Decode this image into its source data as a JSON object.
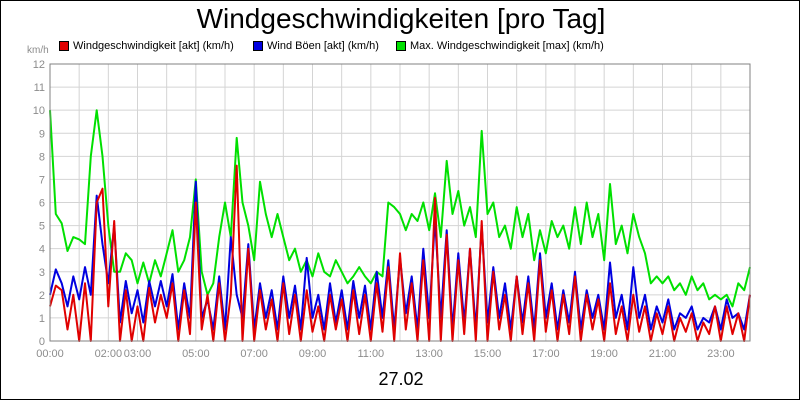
{
  "chart_data": {
    "type": "line",
    "title": "Windgeschwindigkeiten [pro Tag]",
    "ylabel": "km/h",
    "xlabel": "27.02",
    "ylim": [
      0,
      12
    ],
    "xlim_hours": [
      0,
      24
    ],
    "y_ticks": [
      "0",
      "1",
      "2",
      "3",
      "4",
      "5",
      "6",
      "7",
      "8",
      "9",
      "10",
      "11",
      "12"
    ],
    "x_ticks": [
      {
        "hour": 0,
        "label": "00:00"
      },
      {
        "hour": 2,
        "label": "02:00"
      },
      {
        "hour": 3,
        "label": "03:00"
      },
      {
        "hour": 5,
        "label": "05:00"
      },
      {
        "hour": 7,
        "label": "07:00"
      },
      {
        "hour": 9,
        "label": "09:00"
      },
      {
        "hour": 11,
        "label": "11:00"
      },
      {
        "hour": 13,
        "label": "13:00"
      },
      {
        "hour": 15,
        "label": "15:00"
      },
      {
        "hour": 17,
        "label": "17:00"
      },
      {
        "hour": 19,
        "label": "19:00"
      },
      {
        "hour": 21,
        "label": "21:00"
      },
      {
        "hour": 23,
        "label": "23:00"
      }
    ],
    "grid": true,
    "legend_position": "top",
    "series": [
      {
        "name": "Windgeschwindigkeit [akt] (km/h)",
        "color": "#e00000",
        "x": [
          0,
          0.2,
          0.4,
          0.6,
          0.8,
          1.0,
          1.2,
          1.4,
          1.6,
          1.8,
          2.0,
          2.2,
          2.4,
          2.6,
          2.8,
          3.0,
          3.2,
          3.4,
          3.6,
          3.8,
          4.0,
          4.2,
          4.4,
          4.6,
          4.8,
          5.0,
          5.2,
          5.4,
          5.6,
          5.8,
          6.0,
          6.2,
          6.4,
          6.6,
          6.8,
          7.0,
          7.2,
          7.4,
          7.6,
          7.8,
          8.0,
          8.2,
          8.4,
          8.6,
          8.8,
          9.0,
          9.2,
          9.4,
          9.6,
          9.8,
          10.0,
          10.2,
          10.4,
          10.6,
          10.8,
          11.0,
          11.2,
          11.4,
          11.6,
          11.8,
          12.0,
          12.2,
          12.4,
          12.6,
          12.8,
          13.0,
          13.2,
          13.4,
          13.6,
          13.8,
          14.0,
          14.2,
          14.4,
          14.6,
          14.8,
          15.0,
          15.2,
          15.4,
          15.6,
          15.8,
          16.0,
          16.2,
          16.4,
          16.6,
          16.8,
          17.0,
          17.2,
          17.4,
          17.6,
          17.8,
          18.0,
          18.2,
          18.4,
          18.6,
          18.8,
          19.0,
          19.2,
          19.4,
          19.6,
          19.8,
          20.0,
          20.2,
          20.4,
          20.6,
          20.8,
          21.0,
          21.2,
          21.4,
          21.6,
          21.8,
          22.0,
          22.2,
          22.4,
          22.6,
          22.8,
          23.0,
          23.2,
          23.4,
          23.6,
          23.8,
          24.0
        ],
        "values": [
          1.5,
          2.4,
          2.2,
          0.5,
          2.0,
          0,
          2.5,
          0,
          6.0,
          6.6,
          1.5,
          5.2,
          0,
          2.2,
          0,
          1.5,
          0,
          2.3,
          0.8,
          2.0,
          1.0,
          2.5,
          0,
          2.2,
          0.3,
          6.0,
          0.5,
          2.0,
          0,
          2.5,
          0,
          2.0,
          7.6,
          0,
          4.0,
          0,
          2.2,
          0.5,
          1.8,
          0,
          2.5,
          0.3,
          2.0,
          0,
          2.2,
          0.4,
          1.5,
          0,
          2.0,
          0.5,
          1.8,
          0,
          2.2,
          0.3,
          2.0,
          0,
          2.5,
          0.4,
          3.2,
          0,
          3.8,
          0.5,
          2.5,
          0,
          3.5,
          0,
          6.2,
          0,
          4.6,
          0,
          3.5,
          0.3,
          4.0,
          0,
          5.2,
          0,
          3.0,
          0.5,
          2.0,
          0,
          2.8,
          0.3,
          2.5,
          0,
          3.5,
          0.4,
          2.2,
          0,
          2.0,
          0.3,
          2.8,
          0,
          2.0,
          0.5,
          1.8,
          0,
          2.5,
          0.3,
          1.5,
          0,
          2.0,
          0.4,
          1.5,
          0,
          1.2,
          0.3,
          1.5,
          0,
          1.0,
          0.4,
          1.2,
          0,
          0.8,
          0.3,
          1.5,
          0,
          1.5,
          0.3,
          1.2,
          0,
          2.0
        ]
      },
      {
        "name": "Wind Böen [akt] (km/h)",
        "color": "#0000e0",
        "x": [
          0,
          0.2,
          0.4,
          0.6,
          0.8,
          1.0,
          1.2,
          1.4,
          1.6,
          1.8,
          2.0,
          2.2,
          2.4,
          2.6,
          2.8,
          3.0,
          3.2,
          3.4,
          3.6,
          3.8,
          4.0,
          4.2,
          4.4,
          4.6,
          4.8,
          5.0,
          5.2,
          5.4,
          5.6,
          5.8,
          6.0,
          6.2,
          6.4,
          6.6,
          6.8,
          7.0,
          7.2,
          7.4,
          7.6,
          7.8,
          8.0,
          8.2,
          8.4,
          8.6,
          8.8,
          9.0,
          9.2,
          9.4,
          9.6,
          9.8,
          10.0,
          10.2,
          10.4,
          10.6,
          10.8,
          11.0,
          11.2,
          11.4,
          11.6,
          11.8,
          12.0,
          12.2,
          12.4,
          12.6,
          12.8,
          13.0,
          13.2,
          13.4,
          13.6,
          13.8,
          14.0,
          14.2,
          14.4,
          14.6,
          14.8,
          15.0,
          15.2,
          15.4,
          15.6,
          15.8,
          16.0,
          16.2,
          16.4,
          16.6,
          16.8,
          17.0,
          17.2,
          17.4,
          17.6,
          17.8,
          18.0,
          18.2,
          18.4,
          18.6,
          18.8,
          19.0,
          19.2,
          19.4,
          19.6,
          19.8,
          20.0,
          20.2,
          20.4,
          20.6,
          20.8,
          21.0,
          21.2,
          21.4,
          21.6,
          21.8,
          22.0,
          22.2,
          22.4,
          22.6,
          22.8,
          23.0,
          23.2,
          23.4,
          23.6,
          23.8,
          24.0
        ],
        "values": [
          2.0,
          3.1,
          2.5,
          1.5,
          2.8,
          1.8,
          3.2,
          2.0,
          6.3,
          4.2,
          2.5,
          5.0,
          0.8,
          2.6,
          1.2,
          2.2,
          0.8,
          2.6,
          1.5,
          2.6,
          1.5,
          2.9,
          0.5,
          2.5,
          1.0,
          6.9,
          1.0,
          1.8,
          0.5,
          2.8,
          0.5,
          4.5,
          2.0,
          1.0,
          4.2,
          0.5,
          2.5,
          1.0,
          2.2,
          0.5,
          2.8,
          1.0,
          2.4,
          0.5,
          3.6,
          1.0,
          2.0,
          0.5,
          2.5,
          0.8,
          2.2,
          0.5,
          2.6,
          1.0,
          2.4,
          0.5,
          3.0,
          1.0,
          3.5,
          0.5,
          3.6,
          1.2,
          2.8,
          0.5,
          4.0,
          1.0,
          5.3,
          1.0,
          4.8,
          0.5,
          3.8,
          0.8,
          4.0,
          0.5,
          5.0,
          0.8,
          3.2,
          1.0,
          2.5,
          0.5,
          2.8,
          0.8,
          2.8,
          0.5,
          3.8,
          1.0,
          2.5,
          0.5,
          2.2,
          0.8,
          3.0,
          0.5,
          2.2,
          1.0,
          2.0,
          0.5,
          3.4,
          1.0,
          2.0,
          0.5,
          3.2,
          1.0,
          2.0,
          0.5,
          1.5,
          0.8,
          1.8,
          0.5,
          1.2,
          1.0,
          1.5,
          0.5,
          1.0,
          0.8,
          1.5,
          0.5,
          1.8,
          1.0,
          1.2,
          0.5,
          2.0
        ]
      },
      {
        "name": "Max. Windgeschwindigkeit [max] (km/h)",
        "color": "#00e000",
        "x": [
          0,
          0.2,
          0.4,
          0.6,
          0.8,
          1.0,
          1.2,
          1.4,
          1.6,
          1.8,
          2.0,
          2.2,
          2.4,
          2.6,
          2.8,
          3.0,
          3.2,
          3.4,
          3.6,
          3.8,
          4.0,
          4.2,
          4.4,
          4.6,
          4.8,
          5.0,
          5.2,
          5.4,
          5.6,
          5.8,
          6.0,
          6.2,
          6.4,
          6.6,
          6.8,
          7.0,
          7.2,
          7.4,
          7.6,
          7.8,
          8.0,
          8.2,
          8.4,
          8.6,
          8.8,
          9.0,
          9.2,
          9.4,
          9.6,
          9.8,
          10.0,
          10.2,
          10.4,
          10.6,
          10.8,
          11.0,
          11.2,
          11.4,
          11.6,
          11.8,
          12.0,
          12.2,
          12.4,
          12.6,
          12.8,
          13.0,
          13.2,
          13.4,
          13.6,
          13.8,
          14.0,
          14.2,
          14.4,
          14.6,
          14.8,
          15.0,
          15.2,
          15.4,
          15.6,
          15.8,
          16.0,
          16.2,
          16.4,
          16.6,
          16.8,
          17.0,
          17.2,
          17.4,
          17.6,
          17.8,
          18.0,
          18.2,
          18.4,
          18.6,
          18.8,
          19.0,
          19.2,
          19.4,
          19.6,
          19.8,
          20.0,
          20.2,
          20.4,
          20.6,
          20.8,
          21.0,
          21.2,
          21.4,
          21.6,
          21.8,
          22.0,
          22.2,
          22.4,
          22.6,
          22.8,
          23.0,
          23.2,
          23.4,
          23.6,
          23.8,
          24.0
        ],
        "values": [
          10.0,
          5.5,
          5.1,
          3.9,
          4.5,
          4.4,
          4.2,
          8.0,
          10.0,
          8.0,
          5.0,
          3.0,
          3.0,
          3.8,
          3.5,
          2.5,
          3.4,
          2.5,
          3.5,
          2.8,
          3.8,
          4.8,
          3.0,
          3.5,
          4.5,
          7.0,
          3.0,
          2.0,
          2.5,
          4.5,
          6.0,
          4.5,
          8.8,
          6.0,
          5.0,
          3.5,
          6.9,
          5.5,
          4.5,
          5.5,
          4.5,
          3.5,
          4.0,
          3.0,
          3.5,
          2.8,
          3.8,
          3.0,
          2.8,
          3.5,
          3.0,
          2.5,
          2.8,
          3.2,
          2.8,
          2.5,
          3.0,
          2.8,
          6.0,
          5.8,
          5.5,
          4.8,
          5.5,
          5.2,
          6.0,
          4.8,
          6.4,
          4.5,
          7.8,
          5.5,
          6.5,
          5.0,
          5.8,
          4.5,
          9.1,
          5.5,
          6.0,
          4.5,
          5.0,
          4.0,
          5.8,
          4.5,
          5.5,
          3.5,
          4.8,
          3.8,
          5.2,
          4.5,
          5.0,
          4.0,
          5.8,
          4.2,
          6.0,
          4.5,
          5.5,
          3.5,
          6.8,
          4.2,
          5.0,
          3.8,
          5.5,
          4.5,
          3.8,
          2.5,
          2.8,
          2.5,
          2.8,
          2.2,
          2.5,
          2.0,
          2.8,
          2.2,
          2.5,
          1.8,
          2.0,
          1.8,
          2.0,
          1.5,
          2.5,
          2.2,
          3.2
        ]
      }
    ]
  }
}
